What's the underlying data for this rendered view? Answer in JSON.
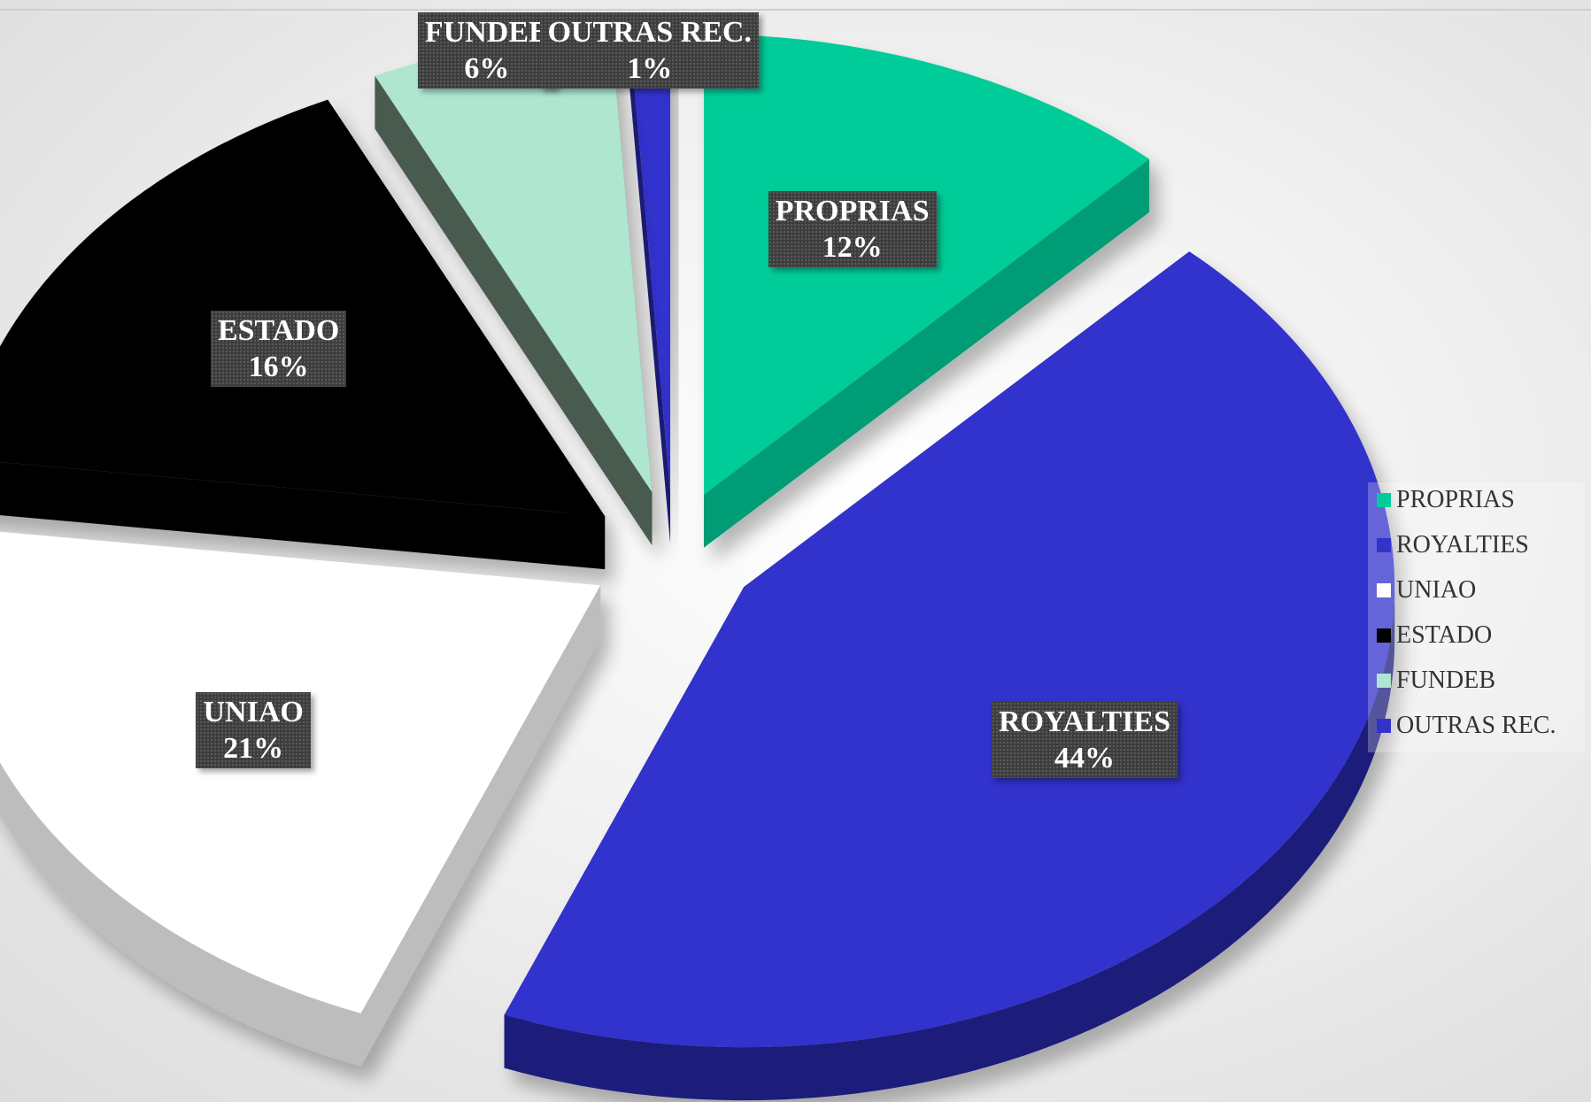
{
  "chart_data": {
    "type": "pie",
    "three_d": true,
    "exploded": true,
    "title": "",
    "slices": [
      {
        "name": "PROPRIAS",
        "value": 12,
        "label_pct": "12%",
        "color": "#00cc99",
        "side": "#009c75"
      },
      {
        "name": "ROYALTIES",
        "value": 44,
        "label_pct": "44%",
        "color": "#3333cc",
        "side": "#1c1c7a"
      },
      {
        "name": "UNIAO",
        "value": 21,
        "label_pct": "21%",
        "color": "#ffffff",
        "side": "#bdbdbd"
      },
      {
        "name": "ESTADO",
        "value": 16,
        "label_pct": "16%",
        "color": "#000000",
        "side": "#000000"
      },
      {
        "name": "FUNDEB",
        "value": 6,
        "label_pct": "6%",
        "color": "#aee6cf",
        "side": "#4a5a50"
      },
      {
        "name": "OUTRAS REC.",
        "value": 1,
        "label_pct": "1%",
        "color": "#3333cc",
        "side": "#1c1c7a"
      }
    ],
    "legend": {
      "position": "right",
      "entries": [
        "PROPRIAS",
        "ROYALTIES",
        "UNIAO",
        "ESTADO",
        "FUNDEB",
        "OUTRAS REC."
      ]
    },
    "data_label_style": "dark-box"
  }
}
